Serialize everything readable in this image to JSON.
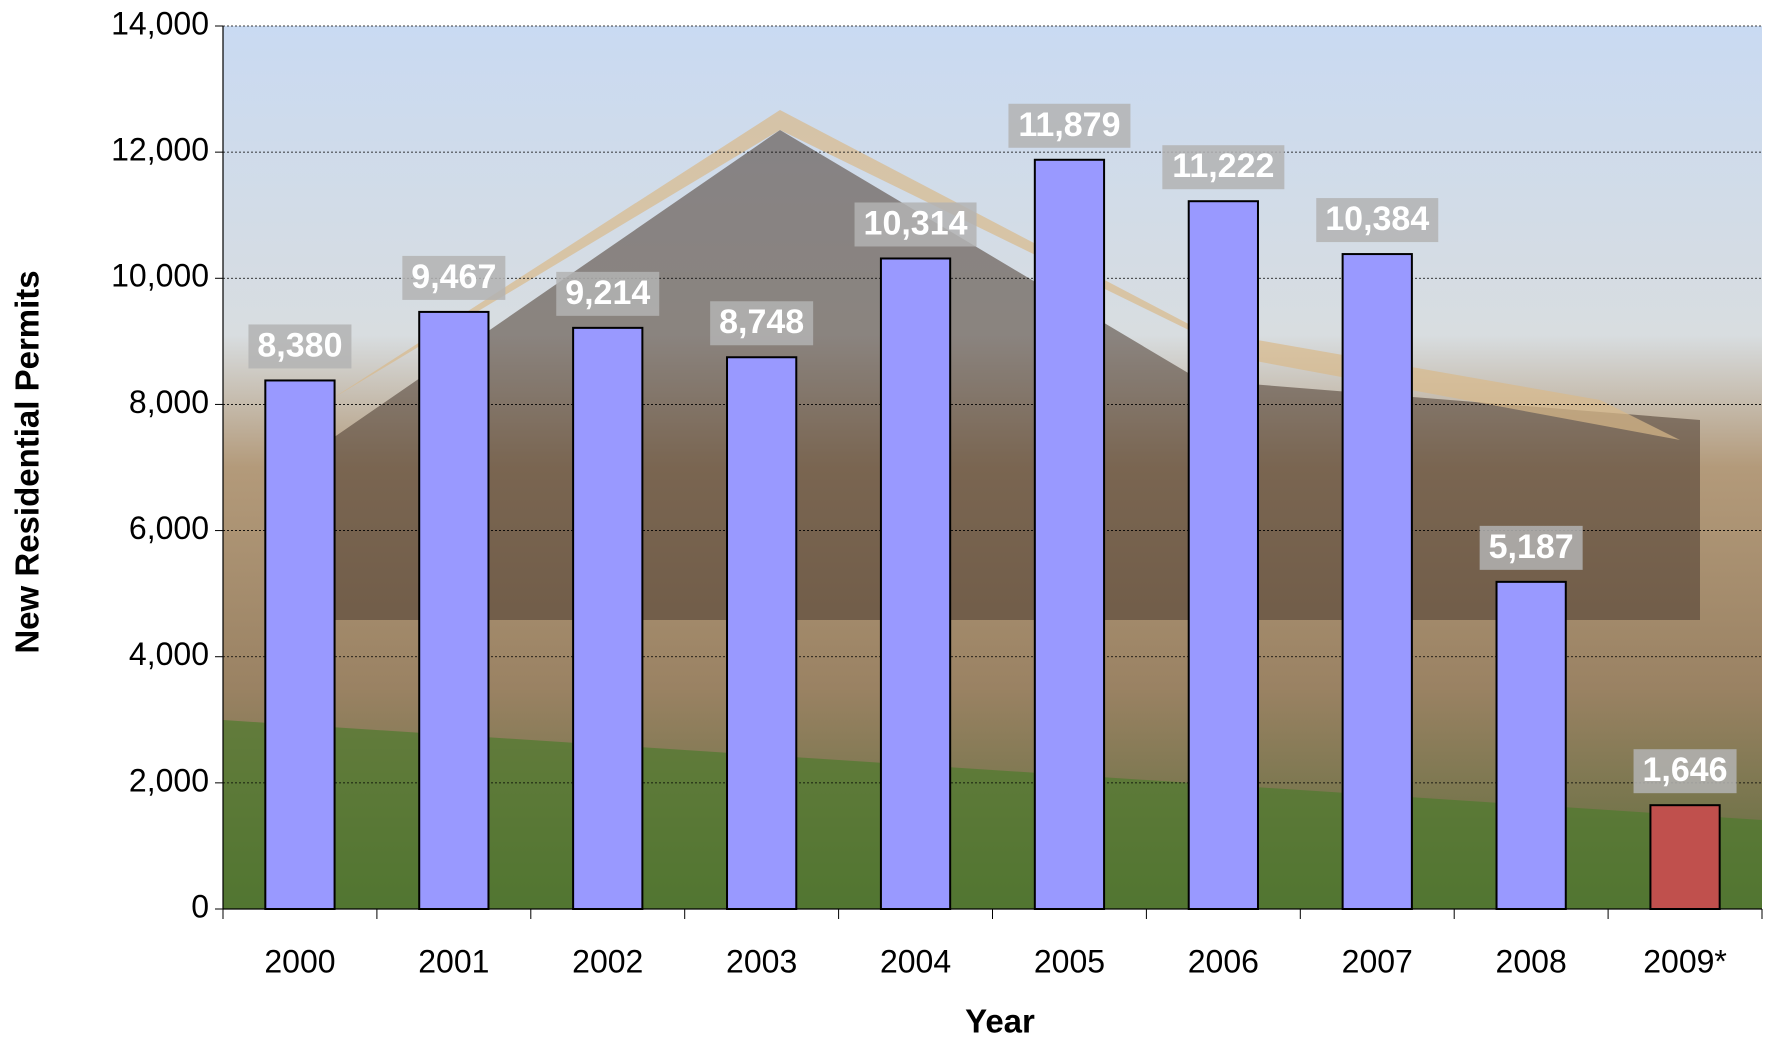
{
  "chart_data": {
    "type": "bar",
    "x_label": "Year",
    "y_label": "New Residential Permits",
    "categories": [
      "2000",
      "2001",
      "2002",
      "2003",
      "2004",
      "2005",
      "2006",
      "2007",
      "2008",
      "2009*"
    ],
    "values": [
      8380,
      9467,
      9214,
      8748,
      10314,
      11879,
      11222,
      10384,
      5187,
      1646
    ],
    "value_labels": [
      "8,380",
      "9,467",
      "9,214",
      "8,748",
      "10,314",
      "11,879",
      "11,222",
      "10,384",
      "5,187",
      "1,646"
    ],
    "colors": [
      "#9999ff",
      "#9999ff",
      "#9999ff",
      "#9999ff",
      "#9999ff",
      "#9999ff",
      "#9999ff",
      "#9999ff",
      "#9999ff",
      "#c0504d"
    ],
    "ylim": [
      0,
      14000
    ],
    "yticks": [
      0,
      {
        "value": 2000,
        "label": "2,000"
      },
      {
        "value": 4000,
        "label": "4,000"
      },
      {
        "value": 6000,
        "label": "6,000"
      },
      {
        "value": 8000,
        "label": "8,000"
      },
      {
        "value": 10000,
        "label": "10,000"
      },
      {
        "value": 12000,
        "label": "12,000"
      },
      {
        "value": 14000,
        "label": "14,000"
      }
    ],
    "grid": true
  }
}
